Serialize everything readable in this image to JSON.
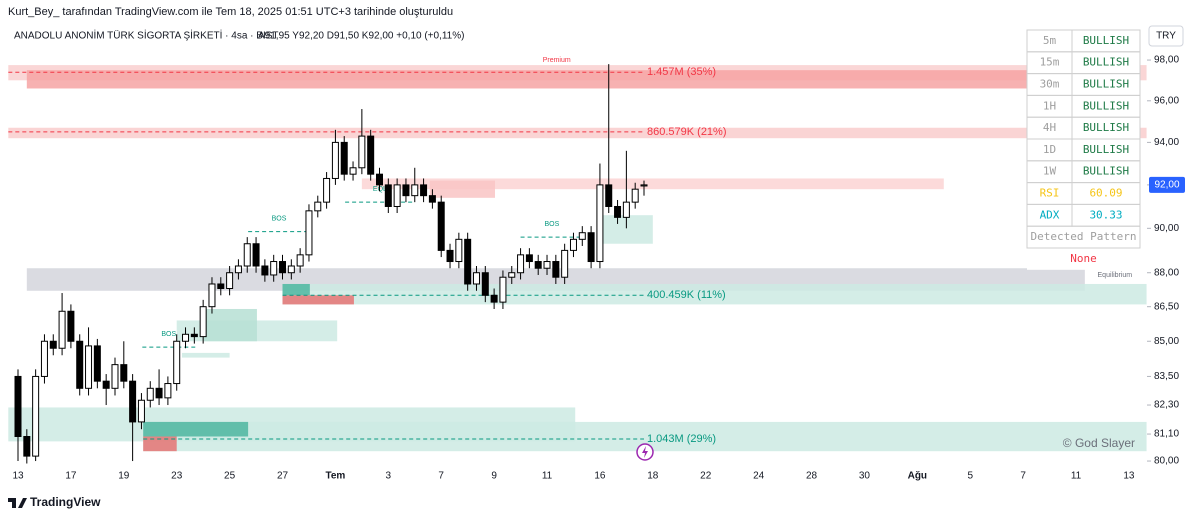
{
  "header": {
    "credit": "Kurt_Bey_ tarafından TradingView.com ile Tem 18, 2025 01:51 UTC+3 tarihinde oluşturuldu",
    "symbol": "ANADOLU ANONİM TÜRK SİGORTA ŞİRKETİ · 4sa · BIST",
    "ohlc": "A91,95 Y92,20 D91,50 K92,00 +0,10 (+0,11%)",
    "currency": "TRY"
  },
  "footer": {
    "brand": "TradingView",
    "watermark": "© God Slayer"
  },
  "table": {
    "rows": [
      {
        "label": "5m",
        "value": "BULLISH",
        "label_color": "#9e9e9e",
        "value_color": "#1e7a46"
      },
      {
        "label": "15m",
        "value": "BULLISH",
        "label_color": "#9e9e9e",
        "value_color": "#1e7a46"
      },
      {
        "label": "30m",
        "value": "BULLISH",
        "label_color": "#9e9e9e",
        "value_color": "#1e7a46"
      },
      {
        "label": "1H",
        "value": "BULLISH",
        "label_color": "#9e9e9e",
        "value_color": "#1e7a46"
      },
      {
        "label": "4H",
        "value": "BULLISH",
        "label_color": "#9e9e9e",
        "value_color": "#1e7a46"
      },
      {
        "label": "1D",
        "value": "BULLISH",
        "label_color": "#9e9e9e",
        "value_color": "#1e7a46"
      },
      {
        "label": "1W",
        "value": "BULLISH",
        "label_color": "#9e9e9e",
        "value_color": "#1e7a46"
      },
      {
        "label": "RSI",
        "value": "60.09",
        "label_color": "#f5c518",
        "value_color": "#f5c518"
      },
      {
        "label": "ADX",
        "value": "30.33",
        "label_color": "#00acc1",
        "value_color": "#00acc1"
      }
    ],
    "pattern_title": "Detected Pattern",
    "pattern": "None",
    "pattern_color": "#f23645"
  },
  "chart_data": {
    "type": "candlestick",
    "log_scale": true,
    "up_color": "#ffffff",
    "down_color": "#000000",
    "outline_color": "#000000",
    "ylim": [
      79.84,
      98.5
    ],
    "yticks": [
      {
        "value": 98,
        "label": "98,00"
      },
      {
        "value": 96,
        "label": "96,00"
      },
      {
        "value": 94,
        "label": "94,00"
      },
      {
        "value": 92,
        "label": "92,00"
      },
      {
        "value": 90,
        "label": "90,00"
      },
      {
        "value": 88,
        "label": "88,00"
      },
      {
        "value": 86.5,
        "label": "86,50"
      },
      {
        "value": 85,
        "label": "85,00"
      },
      {
        "value": 83.5,
        "label": "83,50"
      },
      {
        "value": 82.3,
        "label": "82,30"
      },
      {
        "value": 81.1,
        "label": "81,10"
      },
      {
        "value": 80,
        "label": "80,00"
      }
    ],
    "last_price": {
      "value": 92,
      "label": "92,00",
      "color": "#2962ff"
    },
    "categories": [
      "13",
      null,
      null,
      null,
      null,
      null,
      "17",
      null,
      null,
      null,
      null,
      null,
      "19",
      null,
      null,
      null,
      null,
      null,
      "23",
      null,
      null,
      null,
      null,
      null,
      "25",
      null,
      null,
      null,
      null,
      null,
      "27",
      null,
      null,
      null,
      null,
      null,
      "Tem",
      null,
      null,
      null,
      null,
      null,
      "3",
      null,
      null,
      null,
      null,
      null,
      "7",
      null,
      null,
      null,
      null,
      null,
      "9",
      null,
      null,
      null,
      null,
      null,
      "11",
      null,
      null,
      null,
      null,
      null,
      "16",
      null,
      null,
      null,
      null,
      null,
      "18",
      null,
      null,
      null,
      null,
      null,
      "22",
      null,
      null,
      null,
      null,
      null,
      "24",
      null,
      null,
      null,
      null,
      null,
      "28",
      null,
      null,
      null,
      null,
      null,
      "30",
      null,
      null,
      null,
      null,
      null,
      "Ağu",
      null,
      null,
      null,
      null,
      null,
      "5",
      null,
      null,
      null,
      null,
      null,
      "7",
      null,
      null,
      null,
      null,
      null,
      "11",
      null,
      null,
      null,
      null,
      null,
      "13"
    ],
    "open": [
      83.5,
      81.0,
      80.2,
      83.5,
      85.0,
      84.7,
      86.3,
      85.0,
      83.0,
      84.8,
      83.3,
      83.0,
      84.0,
      83.3,
      81.6,
      82.5,
      83.0,
      82.6,
      83.2,
      85.0,
      85.3,
      85.2,
      86.5,
      87.5,
      87.3,
      88.0,
      88.3,
      89.3,
      88.3,
      87.9,
      88.5,
      88.0,
      88.3,
      88.8,
      90.8,
      91.2,
      92.3,
      94.0,
      92.5,
      92.8,
      94.3,
      92.5,
      92.0,
      91.0,
      92.0,
      91.5,
      92.0,
      91.5,
      91.2,
      89.0,
      88.5,
      89.5,
      87.5,
      88.0,
      87.0,
      86.7,
      87.8,
      88.0,
      88.8,
      88.5,
      88.2,
      88.5,
      87.8,
      89.0,
      89.5,
      89.8,
      88.5,
      92.0,
      91.0,
      90.5,
      91.2,
      91.95,
      null,
      null,
      null,
      null,
      null,
      null,
      null,
      null,
      null,
      null,
      null,
      null,
      null,
      null,
      null,
      null,
      null,
      null,
      null,
      null,
      null,
      null,
      null,
      null,
      null,
      null,
      null,
      null,
      null,
      null,
      null,
      null,
      null,
      null,
      null,
      null,
      null,
      null,
      null,
      null,
      null,
      null,
      null,
      null,
      null,
      null,
      null,
      null,
      null,
      null,
      null,
      null,
      null,
      null,
      null
    ],
    "high": [
      83.8,
      81.3,
      83.8,
      85.3,
      85.3,
      87.1,
      86.6,
      85.3,
      85.6,
      85.1,
      83.6,
      84.3,
      85.0,
      83.6,
      82.8,
      83.3,
      83.8,
      83.5,
      85.3,
      85.6,
      85.6,
      86.8,
      87.8,
      87.8,
      88.3,
      88.6,
      89.6,
      89.6,
      88.6,
      88.8,
      88.8,
      88.6,
      89.1,
      91.1,
      91.5,
      92.6,
      94.6,
      94.3,
      93.1,
      95.6,
      94.6,
      92.8,
      92.3,
      92.3,
      92.3,
      92.8,
      92.3,
      91.8,
      91.5,
      89.3,
      89.8,
      89.8,
      88.3,
      88.3,
      87.3,
      88.1,
      88.3,
      89.1,
      89.1,
      88.8,
      88.8,
      88.8,
      89.3,
      89.8,
      90.1,
      90.1,
      93.0,
      97.8,
      91.3,
      93.6,
      92.1,
      92.2,
      null,
      null,
      null,
      null,
      null,
      null,
      null,
      null,
      null,
      null,
      null,
      null,
      null,
      null,
      null,
      null,
      null,
      null,
      null,
      null,
      null,
      null,
      null,
      null,
      null,
      null,
      null,
      null,
      null,
      null,
      null,
      null,
      null,
      null,
      null,
      null,
      null,
      null,
      null,
      null,
      null,
      null,
      null,
      null,
      null,
      null,
      null,
      null,
      null,
      null,
      null,
      null,
      null,
      null,
      null
    ],
    "low": [
      80.0,
      79.9,
      80.0,
      83.2,
      84.4,
      84.4,
      84.7,
      82.7,
      82.7,
      83.0,
      82.3,
      82.7,
      83.0,
      80.0,
      81.3,
      82.2,
      82.3,
      82.3,
      82.9,
      84.7,
      84.9,
      84.9,
      86.2,
      87.0,
      87.0,
      87.7,
      88.0,
      88.0,
      87.6,
      87.6,
      87.7,
      87.7,
      88.0,
      88.5,
      90.5,
      90.9,
      92.0,
      92.2,
      92.2,
      92.5,
      92.2,
      91.7,
      90.7,
      90.7,
      91.2,
      91.2,
      91.2,
      90.9,
      88.7,
      88.2,
      88.2,
      87.2,
      87.2,
      86.7,
      86.4,
      86.4,
      87.5,
      87.7,
      88.2,
      87.9,
      87.9,
      87.5,
      87.5,
      88.7,
      89.2,
      88.2,
      88.2,
      90.7,
      90.2,
      90.0,
      90.9,
      91.5,
      null,
      null,
      null,
      null,
      null,
      null,
      null,
      null,
      null,
      null,
      null,
      null,
      null,
      null,
      null,
      null,
      null,
      null,
      null,
      null,
      null,
      null,
      null,
      null,
      null,
      null,
      null,
      null,
      null,
      null,
      null,
      null,
      null,
      null,
      null,
      null,
      null,
      null,
      null,
      null,
      null,
      null,
      null,
      null,
      null,
      null,
      null,
      null,
      null,
      null,
      null,
      null,
      null,
      null,
      null
    ],
    "close": [
      81.0,
      80.2,
      83.5,
      85.0,
      84.7,
      86.3,
      85.0,
      83.0,
      84.8,
      83.3,
      83.0,
      84.0,
      83.3,
      81.6,
      82.5,
      83.0,
      82.6,
      83.2,
      85.0,
      85.3,
      85.2,
      86.5,
      87.5,
      87.3,
      88.0,
      88.3,
      89.3,
      88.3,
      87.9,
      88.5,
      88.0,
      88.3,
      88.8,
      90.8,
      91.2,
      92.3,
      94.0,
      92.5,
      92.8,
      94.3,
      92.5,
      92.0,
      91.0,
      92.0,
      91.5,
      92.0,
      91.5,
      91.2,
      89.0,
      88.5,
      89.5,
      87.5,
      88.0,
      87.0,
      86.7,
      87.8,
      88.0,
      88.8,
      88.5,
      88.2,
      88.5,
      87.8,
      89.0,
      89.5,
      89.8,
      88.5,
      92.0,
      91.0,
      90.5,
      91.2,
      91.8,
      92.0,
      null,
      null,
      null,
      null,
      null,
      null,
      null,
      null,
      null,
      null,
      null,
      null,
      null,
      null,
      null,
      null,
      null,
      null,
      null,
      null,
      null,
      null,
      null,
      null,
      null,
      null,
      null,
      null,
      null,
      null,
      null,
      null,
      null,
      null,
      null,
      null,
      null,
      null,
      null,
      null,
      null,
      null,
      null,
      null,
      null,
      null,
      null,
      null,
      null,
      null,
      null,
      null,
      null,
      null,
      null
    ],
    "zones": [
      {
        "x0": -1.1,
        "x1": 128,
        "top": 97.75,
        "bottom": 97.0,
        "color": "#f9cfcf"
      },
      {
        "x0": 1.0,
        "x1": 114.4,
        "top": 97.5,
        "bottom": 96.6,
        "color": "#f6a3a3"
      },
      {
        "x0": -1.1,
        "x1": 128,
        "top": 94.7,
        "bottom": 94.2,
        "color": "#f9cccc"
      },
      {
        "x0": 39,
        "x1": 105,
        "top": 92.3,
        "bottom": 91.8,
        "color": "#fcd3d3"
      },
      {
        "x0": 46.7,
        "x1": 54.1,
        "top": 92.2,
        "bottom": 91.4,
        "color": "#f9c4c4"
      },
      {
        "x0": 1.0,
        "x1": 121,
        "top": 88.2,
        "bottom": 87.2,
        "color": "#d3d5dc"
      },
      {
        "x0": 30,
        "x1": 128,
        "top": 87.5,
        "bottom": 86.6,
        "color": "#cdeae3"
      },
      {
        "x0": 30,
        "x1": 33.1,
        "top": 87.5,
        "bottom": 87.0,
        "color": "#4db6a0"
      },
      {
        "x0": 30,
        "x1": 38.1,
        "top": 87.0,
        "bottom": 86.6,
        "color": "#e57373"
      },
      {
        "x0": 18,
        "x1": 36.2,
        "top": 85.9,
        "bottom": 85.0,
        "color": "#cdeae3"
      },
      {
        "x0": 21.1,
        "x1": 27.1,
        "top": 86.4,
        "bottom": 85.0,
        "color": "#b6dfd4"
      },
      {
        "x0": 18.6,
        "x1": 24,
        "top": 84.5,
        "bottom": 84.3,
        "color": "#cdeae3"
      },
      {
        "x0": -1.1,
        "x1": 63.2,
        "top": 82.2,
        "bottom": 80.8,
        "color": "#cdeae3"
      },
      {
        "x0": 14.2,
        "x1": 128,
        "top": 81.6,
        "bottom": 80.4,
        "color": "#cdeae3"
      },
      {
        "x0": 14.2,
        "x1": 26.1,
        "top": 81.6,
        "bottom": 81.0,
        "color": "#4db6a0"
      },
      {
        "x0": 14.2,
        "x1": 18,
        "top": 81.0,
        "bottom": 80.4,
        "color": "#e57373"
      },
      {
        "x0": 66.3,
        "x1": 72,
        "top": 90.6,
        "bottom": 89.3,
        "color": "#cdeae3"
      }
    ],
    "levels": [
      {
        "price": 97.4,
        "x0": -1.1,
        "x1": 71,
        "label": "1.457M (35%)",
        "color": "#f23645"
      },
      {
        "price": 94.5,
        "x0": -1.1,
        "x1": 71,
        "label": "860.579K (21%)",
        "color": "#f23645"
      },
      {
        "price": 87.0,
        "x0": 30,
        "x1": 71,
        "label": "400.459K (11%)",
        "color": "#089981"
      },
      {
        "price": 80.9,
        "x0": 14.2,
        "x1": 71,
        "label": "1.043M (29%)",
        "color": "#089981"
      },
      {
        "price": 89.85,
        "x0": 26.1,
        "x1": 33.1,
        "label": "BOS",
        "color": "#089981"
      },
      {
        "price": 84.75,
        "x0": 14.1,
        "x1": 20.1,
        "label": "BOS",
        "color": "#089981"
      },
      {
        "price": 89.6,
        "x0": 57,
        "x1": 64.1,
        "label": "BOS",
        "color": "#089981"
      },
      {
        "price": 91.2,
        "x0": 37.1,
        "x1": 45,
        "label": "EQL",
        "color": "#089981"
      }
    ],
    "annotations": [
      {
        "text": "Premium",
        "x": 61.1,
        "price": 98.0,
        "color": "#f23645"
      },
      {
        "text": "Equilibrium",
        "x": 124.4,
        "price": 87.9,
        "color": "#6b6f7a"
      }
    ]
  }
}
